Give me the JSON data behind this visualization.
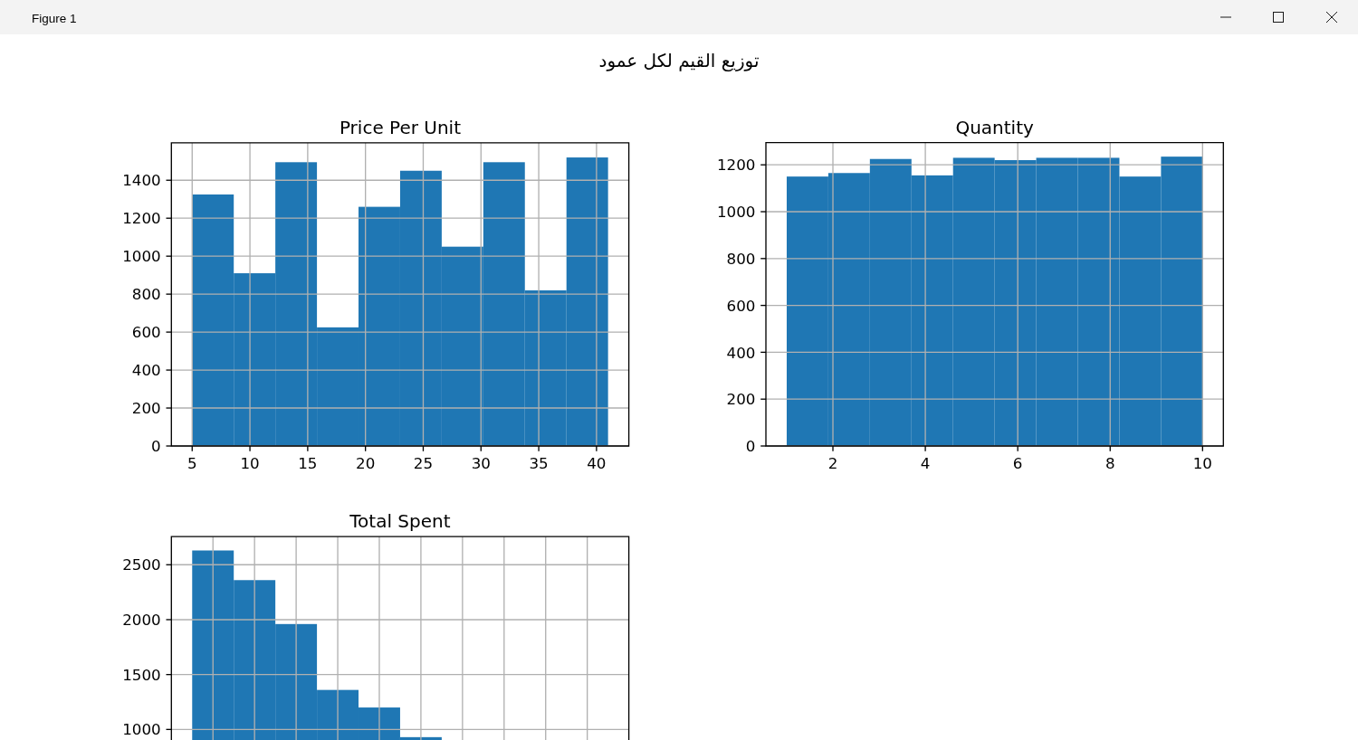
{
  "chart_data": [
    {
      "type": "other",
      "title": "توزيع القيم لكل عمود",
      "annotations": [
        "Figure 1"
      ]
    },
    {
      "type": "histogram",
      "title": "Price Per Unit",
      "bins": [
        5,
        8.6,
        12.2,
        15.8,
        19.4,
        23,
        26.6,
        30.2,
        33.8,
        37.4,
        41
      ],
      "values": [
        1325,
        910,
        1495,
        625,
        1260,
        1450,
        1050,
        1495,
        820,
        1520
      ],
      "color": "#1f77b4",
      "xlim": [
        3.2,
        42.8
      ],
      "ylim": [
        0,
        1597
      ],
      "xticks": [
        5,
        10,
        15,
        20,
        25,
        30,
        35,
        40
      ],
      "yticks": [
        0,
        200,
        400,
        600,
        800,
        1000,
        1200,
        1400
      ],
      "grid": true
    },
    {
      "type": "histogram",
      "title": "Quantity",
      "bins": [
        1,
        1.9,
        2.8,
        3.7,
        4.6,
        5.5,
        6.4,
        7.3,
        8.2,
        9.1,
        10
      ],
      "values": [
        1150,
        1165,
        1225,
        1155,
        1230,
        1220,
        1230,
        1230,
        1150,
        1235
      ],
      "color": "#1f77b4",
      "xlim": [
        0.55,
        10.45
      ],
      "ylim": [
        0,
        1295
      ],
      "xticks": [
        2,
        4,
        6,
        8,
        10
      ],
      "yticks": [
        0,
        200,
        400,
        600,
        800,
        1000,
        1200
      ],
      "grid": true
    },
    {
      "type": "histogram",
      "title": "Total Spent",
      "categories": [
        null,
        null,
        null,
        null,
        null,
        null,
        null,
        null,
        null,
        null
      ],
      "values": [
        2630,
        2360,
        1960,
        1360,
        1200,
        930,
        null,
        null,
        null,
        null
      ],
      "color": "#1f77b4",
      "ylim": [
        904,
        2756
      ],
      "yticks": [
        1000,
        1500,
        2000,
        2500
      ],
      "grid": true
    }
  ]
}
